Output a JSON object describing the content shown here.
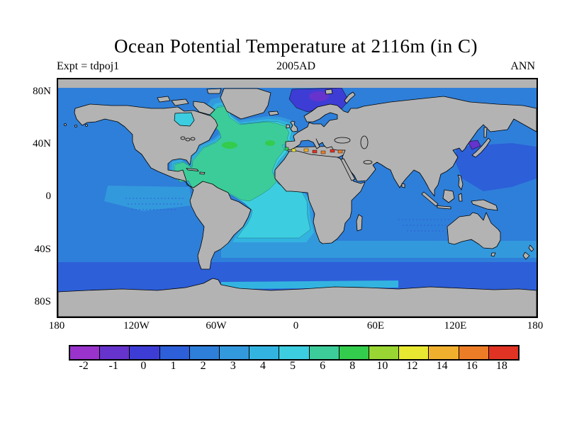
{
  "title": "Ocean Potential Temperature at 2116m (in C)",
  "header": {
    "experiment": "Expt = tdpoj1",
    "date": "2005AD",
    "period": "ANN"
  },
  "chart_data": {
    "type": "heatmap",
    "title": "Ocean Potential Temperature at 2116m (in C)",
    "experiment": "tdpoj1",
    "date": "2005AD",
    "period": "ANN",
    "projection": "equirectangular world map, lon 180W-180E, lat 90N-90S",
    "grid": "off",
    "legend_position": "bottom colorbar",
    "lat_ticks": [
      "80N",
      "40N",
      "0",
      "40S",
      "80S"
    ],
    "lon_ticks": [
      "180",
      "120W",
      "60W",
      "0",
      "60E",
      "120E",
      "180"
    ],
    "land_color": "#b3b3b3",
    "colorbar": {
      "units": "C",
      "tick_labels": [
        "-2",
        "-1",
        "0",
        "1",
        "2",
        "3",
        "4",
        "5",
        "6",
        "8",
        "10",
        "12",
        "14",
        "16",
        "18"
      ],
      "tick_values": [
        -2,
        -1,
        0,
        1,
        2,
        3,
        4,
        5,
        6,
        8,
        10,
        12,
        14,
        16,
        18
      ],
      "colors": [
        "#9933cc",
        "#6633cc",
        "#3d3dd6",
        "#2d5fd9",
        "#2e7fd9",
        "#3399dd",
        "#33b4e0",
        "#3dcde0",
        "#3ccc99",
        "#33cc4d",
        "#99d633",
        "#e8e832",
        "#f0b02e",
        "#ec7d26",
        "#e03323"
      ]
    },
    "regions": [
      {
        "region": "Pacific Ocean interior (most of basin)",
        "temp_c": 2
      },
      {
        "region": "Indian Ocean interior",
        "temp_c": 2.5
      },
      {
        "region": "North Atlantic interior (green patch)",
        "temp_c": 6
      },
      {
        "region": "Tropical / South Atlantic",
        "temp_c": 4.5
      },
      {
        "region": "Gulf of Mexico and Caribbean",
        "temp_c": 5.5
      },
      {
        "region": "Hudson Bay area",
        "temp_c": 5
      },
      {
        "region": "Norwegian / Barents Sea (dark patch)",
        "temp_c": 0
      },
      {
        "region": "Sea of Japan (violet patch)",
        "temp_c": -1
      },
      {
        "region": "Northwest Pacific / Philippine Sea",
        "temp_c": 1
      },
      {
        "region": "Southern Ocean ring 50S-70S",
        "temp_c": 1
      },
      {
        "region": "Antarctic coastal strip (Atlantic sector)",
        "temp_c": 4
      },
      {
        "region": "Mediterranean outflow spots",
        "temp_c": "13-18"
      }
    ]
  }
}
